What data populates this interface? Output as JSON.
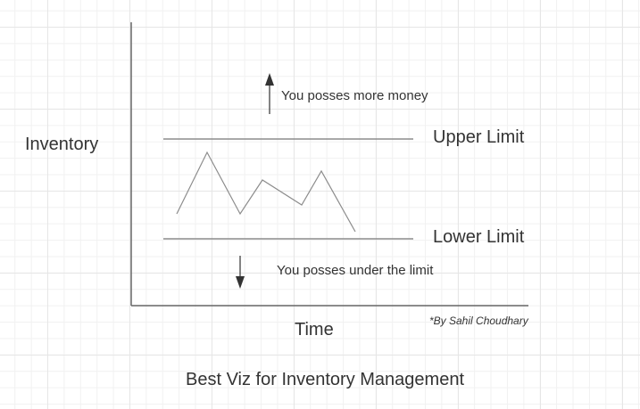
{
  "diagram": {
    "title": "Best Viz for Inventory Management",
    "y_axis_label": "Inventory",
    "x_axis_label": "Time",
    "upper_limit_label": "Upper Limit",
    "lower_limit_label": "Lower Limit",
    "above_note": "You posses more money",
    "below_note": "You posses under the limit",
    "credit": "*By Sahil Choudhary",
    "arrow_up_icon": "arrow-up-icon",
    "arrow_down_icon": "arrow-down-icon",
    "colors": {
      "line": "#8c8c8c",
      "axis": "#666666",
      "arrow": "#333333",
      "text": "#333333"
    }
  }
}
